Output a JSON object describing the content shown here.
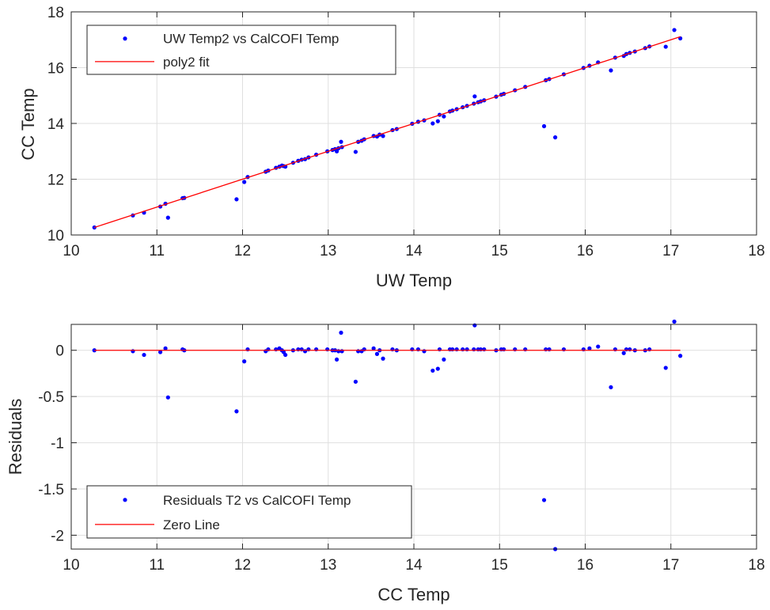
{
  "chart_data": [
    {
      "type": "scatter",
      "title": "",
      "xlabel": "UW Temp",
      "ylabel": "CC Temp",
      "xlim": [
        10,
        18
      ],
      "ylim": [
        10,
        18
      ],
      "xticks": [
        "10",
        "11",
        "12",
        "13",
        "14",
        "15",
        "16",
        "17",
        "18"
      ],
      "yticks": [
        "10",
        "12",
        "14",
        "16",
        "18"
      ],
      "grid": true,
      "legend_position": "top-left",
      "series": [
        {
          "name": "UW Temp2 vs CalCOFI Temp",
          "kind": "scatter",
          "color": "#0000ff",
          "points": [
            [
              10.27,
              10.27
            ],
            [
              10.72,
              10.7
            ],
            [
              10.85,
              10.8
            ],
            [
              11.04,
              11.02
            ],
            [
              11.1,
              11.12
            ],
            [
              11.13,
              10.62
            ],
            [
              11.3,
              11.32
            ],
            [
              11.32,
              11.33
            ],
            [
              11.93,
              11.28
            ],
            [
              12.02,
              11.9
            ],
            [
              12.06,
              12.08
            ],
            [
              12.27,
              12.27
            ],
            [
              12.3,
              12.31
            ],
            [
              12.39,
              12.41
            ],
            [
              12.43,
              12.45
            ],
            [
              12.46,
              12.49
            ],
            [
              12.48,
              12.47
            ],
            [
              12.5,
              12.45
            ],
            [
              12.59,
              12.59
            ],
            [
              12.65,
              12.66
            ],
            [
              12.69,
              12.7
            ],
            [
              12.73,
              12.72
            ],
            [
              12.77,
              12.78
            ],
            [
              12.86,
              12.88
            ],
            [
              12.99,
              13.0
            ],
            [
              13.05,
              13.05
            ],
            [
              13.08,
              13.08
            ],
            [
              13.1,
              13.0
            ],
            [
              13.12,
              13.11
            ],
            [
              13.15,
              13.34
            ],
            [
              13.16,
              13.15
            ],
            [
              13.32,
              12.98
            ],
            [
              13.35,
              13.34
            ],
            [
              13.39,
              13.38
            ],
            [
              13.42,
              13.43
            ],
            [
              13.53,
              13.55
            ],
            [
              13.57,
              13.53
            ],
            [
              13.6,
              13.6
            ],
            [
              13.64,
              13.55
            ],
            [
              13.75,
              13.76
            ],
            [
              13.8,
              13.8
            ],
            [
              13.98,
              13.99
            ],
            [
              14.05,
              14.06
            ],
            [
              14.12,
              14.11
            ],
            [
              14.22,
              14.0
            ],
            [
              14.28,
              14.08
            ],
            [
              14.3,
              14.31
            ],
            [
              14.35,
              14.25
            ],
            [
              14.42,
              14.43
            ],
            [
              14.45,
              14.46
            ],
            [
              14.5,
              14.51
            ],
            [
              14.57,
              14.58
            ],
            [
              14.62,
              14.63
            ],
            [
              14.7,
              14.71
            ],
            [
              14.71,
              14.97
            ],
            [
              14.75,
              14.76
            ],
            [
              14.78,
              14.79
            ],
            [
              14.82,
              14.83
            ],
            [
              14.96,
              14.96
            ],
            [
              15.02,
              15.03
            ],
            [
              15.05,
              15.06
            ],
            [
              15.18,
              15.19
            ],
            [
              15.3,
              15.31
            ],
            [
              15.52,
              13.9
            ],
            [
              15.54,
              15.55
            ],
            [
              15.58,
              15.59
            ],
            [
              15.65,
              13.5
            ],
            [
              15.75,
              15.76
            ],
            [
              15.98,
              15.99
            ],
            [
              16.05,
              16.07
            ],
            [
              16.15,
              16.19
            ],
            [
              16.3,
              15.9
            ],
            [
              16.35,
              16.36
            ],
            [
              16.45,
              16.42
            ],
            [
              16.48,
              16.49
            ],
            [
              16.52,
              16.53
            ],
            [
              16.58,
              16.58
            ],
            [
              16.7,
              16.7
            ],
            [
              16.75,
              16.76
            ],
            [
              16.94,
              16.75
            ],
            [
              17.04,
              17.35
            ],
            [
              17.11,
              17.05
            ]
          ]
        },
        {
          "name": "poly2 fit",
          "kind": "line",
          "color": "#ff0000",
          "x": [
            10.27,
            17.11
          ],
          "y": [
            10.27,
            17.11
          ]
        }
      ]
    },
    {
      "type": "scatter",
      "title": "",
      "xlabel": "CC Temp",
      "ylabel": "Residuals",
      "xlim": [
        10,
        18
      ],
      "ylim": [
        -2.15,
        0.28
      ],
      "xticks": [
        "10",
        "11",
        "12",
        "13",
        "14",
        "15",
        "16",
        "17",
        "18"
      ],
      "yticks": [
        "0",
        "-0.5",
        "-1",
        "-1.5",
        "-2"
      ],
      "ytick_values": [
        0,
        -0.5,
        -1,
        -1.5,
        -2
      ],
      "grid": true,
      "legend_position": "bottom-left",
      "series": [
        {
          "name": "Residuals T2 vs CalCOFI Temp",
          "kind": "scatter",
          "color": "#0000ff",
          "points": [
            [
              10.27,
              0.0
            ],
            [
              10.72,
              -0.01
            ],
            [
              10.85,
              -0.05
            ],
            [
              11.04,
              -0.02
            ],
            [
              11.1,
              0.02
            ],
            [
              11.13,
              -0.51
            ],
            [
              11.3,
              0.01
            ],
            [
              11.32,
              0.0
            ],
            [
              11.93,
              -0.66
            ],
            [
              12.02,
              -0.12
            ],
            [
              12.06,
              0.01
            ],
            [
              12.27,
              -0.01
            ],
            [
              12.3,
              0.01
            ],
            [
              12.39,
              0.01
            ],
            [
              12.43,
              0.02
            ],
            [
              12.46,
              0.0
            ],
            [
              12.48,
              -0.02
            ],
            [
              12.5,
              -0.05
            ],
            [
              12.59,
              0.0
            ],
            [
              12.65,
              0.01
            ],
            [
              12.69,
              0.01
            ],
            [
              12.73,
              -0.01
            ],
            [
              12.77,
              0.01
            ],
            [
              12.86,
              0.01
            ],
            [
              12.99,
              0.01
            ],
            [
              13.05,
              0.0
            ],
            [
              13.08,
              0.0
            ],
            [
              13.1,
              -0.1
            ],
            [
              13.12,
              -0.01
            ],
            [
              13.15,
              0.19
            ],
            [
              13.16,
              -0.01
            ],
            [
              13.32,
              -0.34
            ],
            [
              13.35,
              -0.01
            ],
            [
              13.39,
              -0.01
            ],
            [
              13.42,
              0.01
            ],
            [
              13.53,
              0.02
            ],
            [
              13.57,
              -0.04
            ],
            [
              13.6,
              0.0
            ],
            [
              13.64,
              -0.09
            ],
            [
              13.75,
              0.01
            ],
            [
              13.8,
              0.0
            ],
            [
              13.98,
              0.01
            ],
            [
              14.05,
              0.01
            ],
            [
              14.12,
              -0.01
            ],
            [
              14.22,
              -0.22
            ],
            [
              14.28,
              -0.2
            ],
            [
              14.3,
              0.01
            ],
            [
              14.35,
              -0.1
            ],
            [
              14.42,
              0.01
            ],
            [
              14.45,
              0.01
            ],
            [
              14.5,
              0.01
            ],
            [
              14.57,
              0.01
            ],
            [
              14.62,
              0.01
            ],
            [
              14.7,
              0.01
            ],
            [
              14.71,
              0.27
            ],
            [
              14.75,
              0.01
            ],
            [
              14.78,
              0.01
            ],
            [
              14.82,
              0.01
            ],
            [
              14.96,
              0.0
            ],
            [
              15.02,
              0.01
            ],
            [
              15.05,
              0.01
            ],
            [
              15.18,
              0.01
            ],
            [
              15.3,
              0.01
            ],
            [
              15.52,
              -1.62
            ],
            [
              15.54,
              0.01
            ],
            [
              15.58,
              0.01
            ],
            [
              15.65,
              -2.15
            ],
            [
              15.75,
              0.01
            ],
            [
              15.98,
              0.01
            ],
            [
              16.05,
              0.02
            ],
            [
              16.15,
              0.04
            ],
            [
              16.3,
              -0.4
            ],
            [
              16.35,
              0.01
            ],
            [
              16.45,
              -0.03
            ],
            [
              16.48,
              0.01
            ],
            [
              16.52,
              0.01
            ],
            [
              16.58,
              0.0
            ],
            [
              16.7,
              0.0
            ],
            [
              16.75,
              0.01
            ],
            [
              16.94,
              -0.19
            ],
            [
              17.04,
              0.31
            ],
            [
              17.11,
              -0.06
            ]
          ]
        },
        {
          "name": "Zero Line",
          "kind": "line",
          "color": "#ff0000",
          "x": [
            10.27,
            17.11
          ],
          "y": [
            0,
            0
          ]
        }
      ]
    }
  ]
}
